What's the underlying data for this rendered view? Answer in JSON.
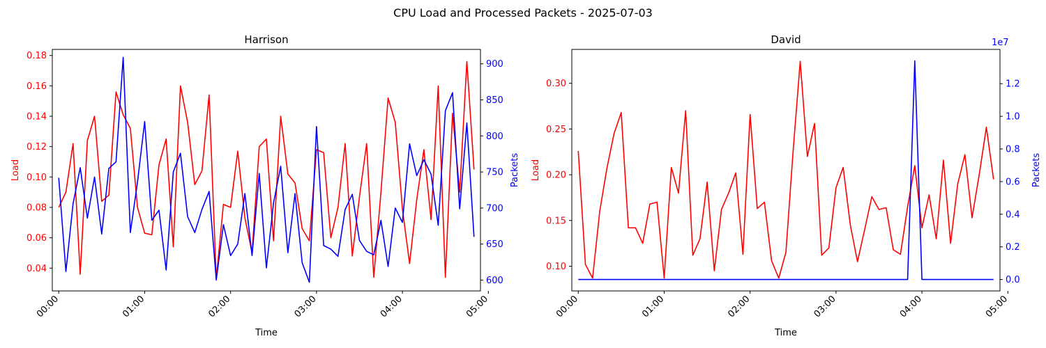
{
  "figure": {
    "suptitle": "CPU Load and Processed Packets - 2025-07-03"
  },
  "colors": {
    "load": "#ff0000",
    "packets": "#0000ff",
    "axis": "#000000",
    "background": "#ffffff"
  },
  "chart_data": [
    {
      "type": "line",
      "title": "Harrison",
      "xlabel": "Time",
      "ylabel_left": "Load",
      "ylabel_right": "Packets",
      "x_tick_labels": [
        "00:00",
        "01:00",
        "02:00",
        "03:00",
        "04:00",
        "05:00"
      ],
      "x_ticks_minutes": [
        0,
        60,
        120,
        180,
        240,
        300
      ],
      "xlim_minutes": [
        -4.5,
        294.5
      ],
      "x_step_minutes": 5,
      "grid": false,
      "left_axis": {
        "ylim": [
          0.025,
          0.184
        ],
        "ticks": [
          0.04,
          0.06,
          0.08,
          0.1,
          0.12,
          0.14,
          0.16,
          0.18
        ],
        "tick_labels": [
          "0.04",
          "0.06",
          "0.08",
          "0.10",
          "0.12",
          "0.14",
          "0.16",
          "0.18"
        ]
      },
      "right_axis": {
        "ylim": [
          585,
          920
        ],
        "ticks": [
          600,
          650,
          700,
          750,
          800,
          850,
          900
        ],
        "tick_labels": [
          "600",
          "650",
          "700",
          "750",
          "800",
          "850",
          "900"
        ]
      },
      "series": [
        {
          "name": "Load",
          "axis": "left",
          "color": "#ff0000",
          "values": [
            0.08,
            0.09,
            0.122,
            0.036,
            0.124,
            0.14,
            0.084,
            0.088,
            0.156,
            0.141,
            0.132,
            0.08,
            0.063,
            0.062,
            0.108,
            0.125,
            0.054,
            0.16,
            0.136,
            0.095,
            0.104,
            0.154,
            0.033,
            0.082,
            0.08,
            0.117,
            0.073,
            0.05,
            0.12,
            0.125,
            0.058,
            0.14,
            0.102,
            0.096,
            0.066,
            0.058,
            0.118,
            0.116,
            0.06,
            0.08,
            0.122,
            0.048,
            0.087,
            0.122,
            0.034,
            0.09,
            0.152,
            0.136,
            0.079,
            0.043,
            0.085,
            0.118,
            0.072,
            0.16,
            0.034,
            0.142,
            0.09,
            0.176,
            0.105
          ]
        },
        {
          "name": "Packets",
          "axis": "right",
          "color": "#0000ff",
          "values": [
            742,
            612,
            706,
            756,
            686,
            743,
            664,
            755,
            764,
            909,
            666,
            736,
            820,
            683,
            697,
            614,
            750,
            776,
            688,
            666,
            698,
            723,
            600,
            677,
            634,
            650,
            720,
            634,
            748,
            617,
            707,
            758,
            638,
            720,
            624,
            597,
            813,
            648,
            643,
            633,
            698,
            719,
            655,
            640,
            635,
            683,
            619,
            700,
            680,
            789,
            745,
            767,
            747,
            676,
            835,
            860,
            699,
            818,
            660
          ]
        }
      ]
    },
    {
      "type": "line",
      "title": "David",
      "xlabel": "Time",
      "ylabel_left": "Load",
      "ylabel_right": "Packets",
      "right_axis_offset_label": "1e7",
      "x_tick_labels": [
        "00:00",
        "01:00",
        "02:00",
        "03:00",
        "04:00",
        "05:00"
      ],
      "x_ticks_minutes": [
        0,
        60,
        120,
        180,
        240,
        300
      ],
      "xlim_minutes": [
        -4.5,
        294.5
      ],
      "x_step_minutes": 5,
      "grid": false,
      "left_axis": {
        "ylim": [
          0.073,
          0.337
        ],
        "ticks": [
          0.1,
          0.15,
          0.2,
          0.25,
          0.3
        ],
        "tick_labels": [
          "0.10",
          "0.15",
          "0.20",
          "0.25",
          "0.30"
        ]
      },
      "right_axis": {
        "ylim": [
          -0.07,
          1.41
        ],
        "ticks": [
          0.0,
          0.2,
          0.4,
          0.6,
          0.8,
          1.0,
          1.2
        ],
        "tick_labels": [
          "0.0",
          "0.2",
          "0.4",
          "0.6",
          "0.8",
          "1.0",
          "1.2"
        ]
      },
      "series": [
        {
          "name": "Load",
          "axis": "left",
          "color": "#ff0000",
          "values": [
            0.226,
            0.102,
            0.087,
            0.16,
            0.207,
            0.245,
            0.268,
            0.142,
            0.142,
            0.125,
            0.168,
            0.17,
            0.087,
            0.208,
            0.18,
            0.27,
            0.112,
            0.13,
            0.192,
            0.095,
            0.162,
            0.18,
            0.202,
            0.113,
            0.266,
            0.163,
            0.17,
            0.106,
            0.087,
            0.115,
            0.225,
            0.324,
            0.22,
            0.256,
            0.112,
            0.12,
            0.186,
            0.208,
            0.145,
            0.105,
            0.14,
            0.176,
            0.162,
            0.164,
            0.118,
            0.113,
            0.165,
            0.21,
            0.142,
            0.178,
            0.13,
            0.216,
            0.125,
            0.19,
            0.222,
            0.153,
            0.2,
            0.252,
            0.195
          ]
        },
        {
          "name": "Packets",
          "axis": "right",
          "color": "#0000ff",
          "values": [
            0,
            0,
            0,
            0,
            0,
            0,
            0,
            0,
            0,
            0,
            0,
            0,
            0,
            0,
            0,
            0,
            0,
            0,
            0,
            0,
            0,
            0,
            0,
            0,
            0,
            0,
            0,
            0,
            0,
            0,
            0,
            0,
            0,
            0,
            0,
            0,
            0,
            0,
            0,
            0,
            0,
            0,
            0,
            0,
            0,
            0,
            0,
            1.34,
            0,
            0,
            0,
            0,
            0,
            0,
            0,
            0,
            0,
            0,
            0
          ]
        }
      ]
    }
  ]
}
